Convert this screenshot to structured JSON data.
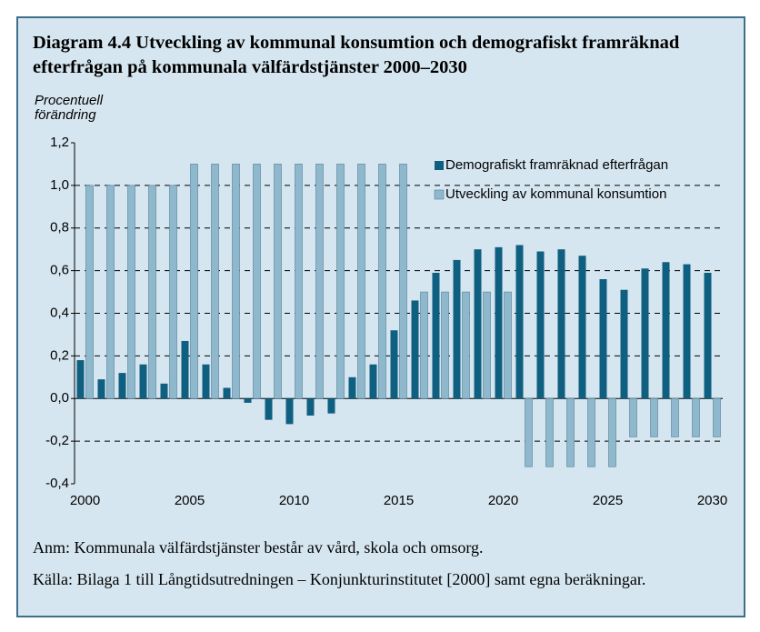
{
  "chart_data": {
    "type": "bar",
    "title": "Diagram 4.4 Utveckling av kommunal konsumtion och demografiskt framräknad efterfrågan på kommunala välfärdstjänster 2000–2030",
    "y_label": "Procentuell förändring",
    "categories": [
      "2000",
      null,
      null,
      null,
      null,
      "2005",
      null,
      null,
      null,
      null,
      "2010",
      null,
      null,
      null,
      null,
      "2015",
      null,
      null,
      null,
      null,
      "2020",
      null,
      null,
      null,
      null,
      "2025",
      null,
      null,
      null,
      null,
      "2030"
    ],
    "series": [
      {
        "name": "Demografiskt framräknad efterfrågan",
        "color": "#0f5f80",
        "values": [
          0.18,
          0.09,
          0.12,
          0.16,
          0.07,
          0.27,
          0.16,
          0.05,
          -0.02,
          -0.1,
          -0.12,
          -0.08,
          -0.07,
          0.1,
          0.16,
          0.32,
          0.46,
          0.59,
          0.65,
          0.7,
          0.71,
          0.72,
          0.69,
          0.7,
          0.67,
          0.56,
          0.51,
          0.61,
          0.64,
          0.63,
          0.59
        ]
      },
      {
        "name": "Utveckling av kommunal konsumtion",
        "color": "#8fb8cc",
        "values": [
          1.0,
          1.0,
          1.0,
          1.0,
          1.0,
          1.1,
          1.1,
          1.1,
          1.1,
          1.1,
          1.1,
          1.1,
          1.1,
          1.1,
          1.1,
          1.1,
          0.5,
          0.5,
          0.5,
          0.5,
          0.5,
          -0.32,
          -0.32,
          -0.32,
          -0.32,
          -0.32,
          -0.18,
          -0.18,
          -0.18,
          -0.18,
          -0.18
        ]
      }
    ],
    "ylim": [
      -0.4,
      1.2
    ],
    "yticks": [
      {
        "value": -0.4,
        "label": "-0,4"
      },
      {
        "value": -0.2,
        "label": "-0,2"
      },
      {
        "value": 0,
        "label": "0,0"
      },
      {
        "value": 0.2,
        "label": "0,2"
      },
      {
        "value": 0.4,
        "label": "0,4"
      },
      {
        "value": 0.6,
        "label": "0,6"
      },
      {
        "value": 0.8,
        "label": "0,8"
      },
      {
        "value": 1.0,
        "label": "1,0"
      },
      {
        "value": 1.2,
        "label": "1,2"
      }
    ],
    "grid": true,
    "legend": "upper right",
    "notes": [
      "Anm: Kommunala välfärdstjänster består av vård, skola och omsorg.",
      "Källa: Bilaga 1 till Långtidsutredningen – Konjunkturinstitutet [2000] samt egna beräkningar."
    ]
  }
}
